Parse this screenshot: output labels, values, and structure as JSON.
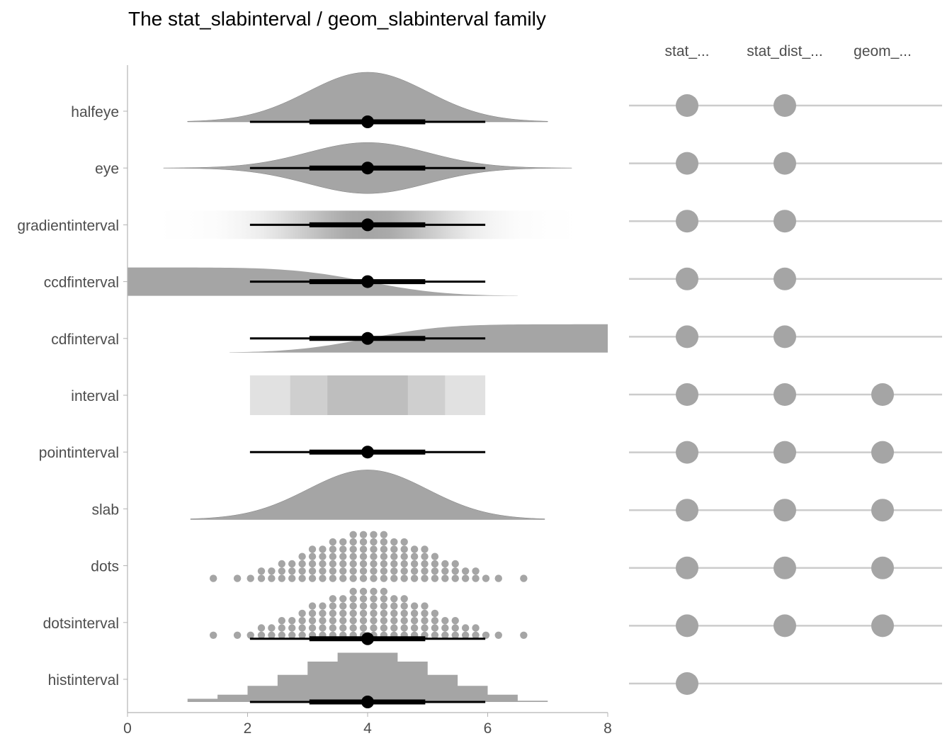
{
  "title": "The stat_slabinterval / geom_slabinterval family",
  "colors": {
    "slab": "#a5a5a5",
    "interval": "#000000",
    "axis": "#b3b3b3",
    "guide_line": "#cccccc",
    "text": "#4d4d4d"
  },
  "chart_data": [
    {
      "type": "distribution",
      "title": "The stat_slabinterval / geom_slabinterval family",
      "xlabel": "",
      "ylabel": "",
      "xlim": [
        0,
        8
      ],
      "x_ticks": [
        0,
        2,
        4,
        6,
        8
      ],
      "x_tick_labels": [
        "0",
        "2",
        "4",
        "6",
        "8"
      ],
      "grid": false,
      "distribution": {
        "name": "normal",
        "mean": 4,
        "sd": 1
      },
      "interval": {
        "point": 4,
        "inner": [
          3.03,
          4.96
        ],
        "outer": [
          2.04,
          5.96
        ]
      },
      "categories": [
        "halfeye",
        "eye",
        "gradientinterval",
        "ccdfinterval",
        "cdfinterval",
        "interval",
        "pointinterval",
        "slab",
        "dots",
        "dotsinterval",
        "histinterval"
      ],
      "category_slab_range": [
        [
          1,
          7
        ],
        [
          0.6,
          7.4
        ],
        [
          0.5,
          7.5
        ],
        [
          0,
          6.5
        ],
        [
          1.7,
          8
        ],
        [
          2.04,
          5.96
        ],
        [
          2.04,
          5.96
        ],
        [
          1.05,
          6.95
        ],
        [
          1.4,
          6.6
        ],
        [
          1.4,
          6.6
        ],
        [
          1,
          7
        ]
      ],
      "interval_bands": [
        {
          "range": [
            2.04,
            5.96
          ],
          "level": 0.95
        },
        {
          "range": [
            2.71,
            5.29
          ],
          "level": 0.8
        },
        {
          "range": [
            3.33,
            4.67
          ],
          "level": 0.5
        }
      ],
      "dots_columns": [
        {
          "x": 1.43,
          "count": 1
        },
        {
          "x": 1.83,
          "count": 1
        },
        {
          "x": 2.05,
          "count": 1
        },
        {
          "x": 2.23,
          "count": 2
        },
        {
          "x": 2.4,
          "count": 2
        },
        {
          "x": 2.57,
          "count": 3
        },
        {
          "x": 2.74,
          "count": 3
        },
        {
          "x": 2.91,
          "count": 4
        },
        {
          "x": 3.08,
          "count": 5
        },
        {
          "x": 3.25,
          "count": 5
        },
        {
          "x": 3.42,
          "count": 6
        },
        {
          "x": 3.59,
          "count": 6
        },
        {
          "x": 3.76,
          "count": 7
        },
        {
          "x": 3.93,
          "count": 7
        },
        {
          "x": 4.1,
          "count": 7
        },
        {
          "x": 4.27,
          "count": 7
        },
        {
          "x": 4.44,
          "count": 6
        },
        {
          "x": 4.61,
          "count": 6
        },
        {
          "x": 4.78,
          "count": 5
        },
        {
          "x": 4.95,
          "count": 5
        },
        {
          "x": 5.12,
          "count": 4
        },
        {
          "x": 5.29,
          "count": 3
        },
        {
          "x": 5.46,
          "count": 3
        },
        {
          "x": 5.63,
          "count": 2
        },
        {
          "x": 5.8,
          "count": 2
        },
        {
          "x": 5.97,
          "count": 1
        },
        {
          "x": 6.18,
          "count": 1
        },
        {
          "x": 6.6,
          "count": 1
        }
      ],
      "histogram": [
        {
          "range": [
            1,
            1.5
          ],
          "height": 0.08
        },
        {
          "range": [
            1.5,
            2
          ],
          "height": 0.18
        },
        {
          "range": [
            2,
            2.5
          ],
          "height": 0.4
        },
        {
          "range": [
            2.5,
            3
          ],
          "height": 0.67
        },
        {
          "range": [
            3,
            3.5
          ],
          "height": 1.0
        },
        {
          "range": [
            3.5,
            4
          ],
          "height": 1.22
        },
        {
          "range": [
            4,
            4.5
          ],
          "height": 1.22
        },
        {
          "range": [
            4.5,
            5
          ],
          "height": 1.0
        },
        {
          "range": [
            5,
            5.5
          ],
          "height": 0.67
        },
        {
          "range": [
            5.5,
            6
          ],
          "height": 0.4
        },
        {
          "range": [
            6,
            6.5
          ],
          "height": 0.18
        },
        {
          "range": [
            6.5,
            7
          ],
          "height": 0.03
        }
      ]
    },
    {
      "type": "table",
      "title": "",
      "columns": [
        "stat_...",
        "stat_dist_...",
        "geom_..."
      ],
      "rows": [
        "halfeye",
        "eye",
        "gradientinterval",
        "ccdfinterval",
        "cdfinterval",
        "interval",
        "pointinterval",
        "slab",
        "dots",
        "dotsinterval",
        "histinterval"
      ],
      "availability": [
        [
          true,
          true,
          false
        ],
        [
          true,
          true,
          false
        ],
        [
          true,
          true,
          false
        ],
        [
          true,
          true,
          false
        ],
        [
          true,
          true,
          false
        ],
        [
          true,
          true,
          true
        ],
        [
          true,
          true,
          true
        ],
        [
          true,
          true,
          true
        ],
        [
          true,
          true,
          true
        ],
        [
          true,
          true,
          true
        ],
        [
          true,
          false,
          false
        ]
      ]
    }
  ]
}
